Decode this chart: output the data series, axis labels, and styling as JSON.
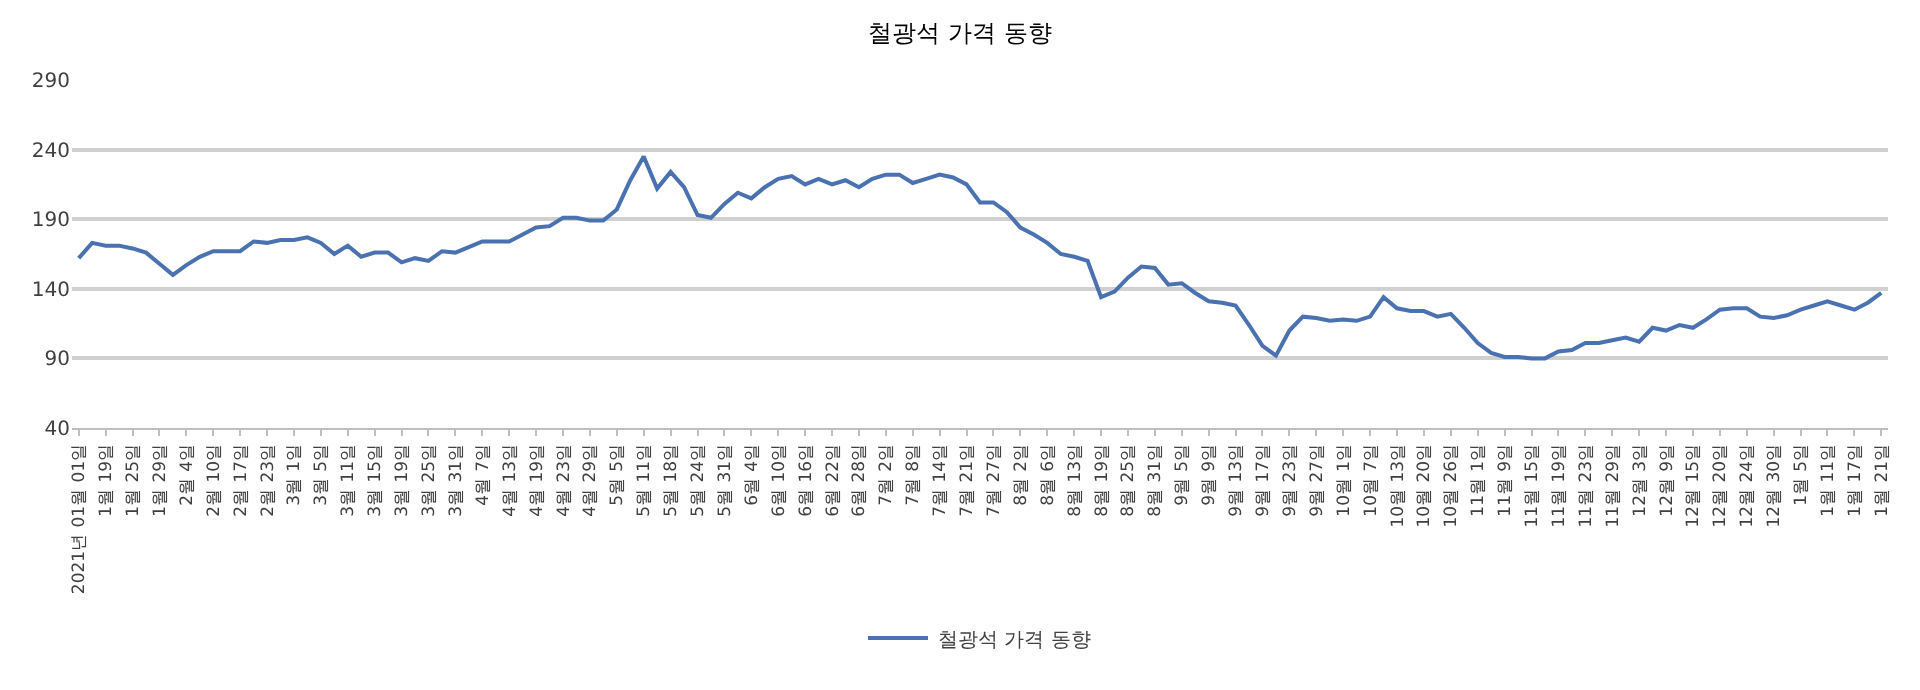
{
  "chart_data": {
    "type": "line",
    "title": "철광석 가격 동향",
    "categories": [
      "2021년 01월 01일",
      null,
      "1월 19일",
      null,
      "1월 25일",
      null,
      "1월 29일",
      null,
      "2월 4일",
      null,
      "2월 10일",
      null,
      "2월 17일",
      null,
      "2월 23일",
      null,
      "3월 1일",
      null,
      "3월 5일",
      null,
      "3월 11일",
      null,
      "3월 15일",
      null,
      "3월 19일",
      null,
      "3월 25일",
      null,
      "3월 31일",
      null,
      "4월 7일",
      null,
      "4월 13일",
      null,
      "4월 19일",
      null,
      "4월 23일",
      null,
      "4월 29일",
      null,
      "5월 5일",
      null,
      "5월 11일",
      null,
      "5월 18일",
      null,
      "5월 24일",
      null,
      "5월 31일",
      null,
      "6월 4일",
      null,
      "6월 10일",
      null,
      "6월 16일",
      null,
      "6월 22일",
      null,
      "6월 28일",
      null,
      "7월 2일",
      null,
      "7월 8일",
      null,
      "7월 14일",
      null,
      "7월 21일",
      null,
      "7월 27일",
      null,
      "8월 2일",
      null,
      "8월 6일",
      null,
      "8월 13일",
      null,
      "8월 19일",
      null,
      "8월 25일",
      null,
      "8월 31일",
      null,
      "9월 5일",
      null,
      "9월 9일",
      null,
      "9월 13일",
      null,
      "9월 17일",
      null,
      "9월 23일",
      null,
      "9월 27일",
      null,
      "10월 1일",
      null,
      "10월 7일",
      null,
      "10월 13일",
      null,
      "10월 20일",
      null,
      "10월 26일",
      null,
      "11월 1일",
      null,
      "11월 9일",
      null,
      "11월 15일",
      null,
      "11월 19일",
      null,
      "11월 23일",
      null,
      "11월 29일",
      null,
      "12월 3일",
      null,
      "12월 9일",
      null,
      "12월 15일",
      null,
      "12월 20일",
      null,
      "12월 24일",
      null,
      "12월 30일",
      null,
      "1월 5일",
      null,
      "1월 11일",
      null,
      "1월 17일",
      null,
      "1월 21일"
    ],
    "series": [
      {
        "name": "철광석 가격 동향",
        "color": "#4a72b0",
        "values": [
          162,
          173,
          171,
          171,
          169,
          166,
          158,
          150,
          157,
          163,
          167,
          167,
          167,
          174,
          173,
          175,
          175,
          177,
          173,
          165,
          171,
          163,
          166,
          166,
          159,
          162,
          160,
          167,
          166,
          170,
          174,
          174,
          174,
          179,
          184,
          185,
          191,
          191,
          189,
          189,
          197,
          218,
          235,
          212,
          224,
          213,
          193,
          191,
          201,
          209,
          205,
          213,
          219,
          221,
          215,
          219,
          215,
          218,
          213,
          219,
          222,
          222,
          216,
          219,
          222,
          220,
          215,
          202,
          202,
          195,
          184,
          179,
          173,
          165,
          163,
          160,
          134,
          138,
          148,
          156,
          155,
          143,
          144,
          137,
          131,
          130,
          128,
          114,
          99,
          92,
          110,
          120,
          119,
          117,
          118,
          117,
          120,
          134,
          126,
          124,
          124,
          120,
          122,
          112,
          101,
          94,
          91,
          91,
          90,
          90,
          95,
          96,
          101,
          101,
          103,
          105,
          102,
          112,
          110,
          114,
          112,
          118,
          125,
          126,
          126,
          120,
          119,
          121,
          125,
          128,
          131,
          128,
          125,
          130,
          137
        ]
      }
    ],
    "ylim": [
      40,
      290
    ],
    "yticks": [
      40,
      90,
      140,
      190,
      240,
      290
    ],
    "grid": "y",
    "legend": "bottom",
    "marker": "none",
    "line_style": "solid"
  }
}
